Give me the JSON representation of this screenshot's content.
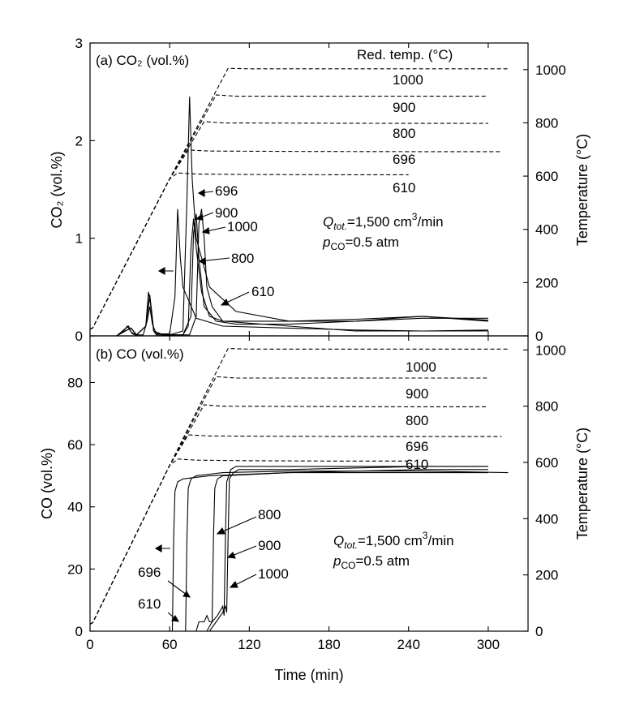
{
  "chart_data": [
    {
      "type": "line",
      "panel_label": "(a) CO₂ (vol.%)",
      "ylabel_left": "CO₂ (vol.%)",
      "ylabel_right": "Temperature (°C)",
      "xlim": [
        0,
        330
      ],
      "ylim_left": [
        0,
        3
      ],
      "ylim_right": [
        0,
        1100
      ],
      "xticks": [
        0,
        60,
        120,
        180,
        240,
        300
      ],
      "yticks_left": [
        "0",
        "1",
        "2",
        "3"
      ],
      "yticks_right": [
        "0",
        "200",
        "400",
        "600",
        "800",
        "1000"
      ],
      "legend_title": "Red. temp. (°C)",
      "temp_labels": [
        "1000",
        "900",
        "800",
        "696",
        "610"
      ],
      "conditions": {
        "q_label": "Q",
        "q_sub": "tot.",
        "q_value": "=1,500 cm",
        "q_exp": "3",
        "q_unit": "/min",
        "p_label": "p",
        "p_sub": "CO",
        "p_value": "=0.5 atm"
      },
      "peak_labels": [
        "696",
        "900",
        "1000",
        "800",
        "610"
      ],
      "temperature_series": [
        {
          "setpoint": 610,
          "x": [
            0,
            2,
            30,
            60,
            66,
            80,
            120,
            180,
            240
          ],
          "y": [
            25,
            30,
            300,
            590,
            612,
            608,
            606,
            605,
            605
          ]
        },
        {
          "setpoint": 696,
          "x": [
            0,
            2,
            30,
            60,
            74,
            90,
            150,
            240,
            310
          ],
          "y": [
            25,
            30,
            300,
            590,
            698,
            694,
            693,
            692,
            692
          ]
        },
        {
          "setpoint": 800,
          "x": [
            0,
            2,
            30,
            60,
            86,
            100,
            160,
            240,
            300
          ],
          "y": [
            25,
            30,
            300,
            590,
            805,
            800,
            799,
            798,
            798
          ]
        },
        {
          "setpoint": 900,
          "x": [
            0,
            2,
            30,
            60,
            95,
            110,
            170,
            240,
            300
          ],
          "y": [
            25,
            30,
            300,
            590,
            905,
            900,
            900,
            900,
            900
          ]
        },
        {
          "setpoint": 1000,
          "x": [
            0,
            2,
            30,
            60,
            104,
            120,
            180,
            250,
            315
          ],
          "y": [
            25,
            30,
            300,
            590,
            1005,
            1003,
            1003,
            1003,
            1003
          ]
        }
      ],
      "series": [
        {
          "label": "610",
          "x": [
            0,
            20,
            26,
            28,
            30,
            32,
            34,
            40,
            43,
            45,
            47,
            50,
            60,
            64,
            66,
            68,
            70,
            80,
            100,
            150,
            200,
            250,
            300
          ],
          "y": [
            0,
            0,
            0.06,
            0.1,
            0.06,
            0.02,
            0.01,
            0.01,
            0.15,
            0.3,
            0.12,
            0.02,
            0.02,
            0.4,
            1.3,
            0.8,
            0.5,
            0.18,
            0.1,
            0.08,
            0.06,
            0.05,
            0.05
          ]
        },
        {
          "label": "696",
          "x": [
            0,
            20,
            27,
            29,
            31,
            35,
            42,
            44,
            46,
            48,
            50,
            60,
            70,
            73,
            75,
            77,
            80,
            90,
            110,
            150,
            200,
            250,
            300
          ],
          "y": [
            0,
            0,
            0.08,
            0.1,
            0.04,
            0.01,
            0.1,
            0.45,
            0.3,
            0.05,
            0.01,
            0.01,
            0.05,
            1.4,
            2.45,
            1.6,
            1.0,
            0.5,
            0.25,
            0.15,
            0.15,
            0.18,
            0.18
          ]
        },
        {
          "label": "800",
          "x": [
            0,
            20,
            28,
            31,
            35,
            42,
            45,
            48,
            55,
            70,
            76,
            78,
            80,
            82,
            86,
            95,
            110,
            150,
            200,
            250,
            300
          ],
          "y": [
            0,
            0,
            0.06,
            0.08,
            0.01,
            0.1,
            0.42,
            0.05,
            0.01,
            0.01,
            0.2,
            1.05,
            1.25,
            0.8,
            0.3,
            0.15,
            0.12,
            0.12,
            0.15,
            0.2,
            0.15
          ]
        },
        {
          "label": "900",
          "x": [
            0,
            20,
            28,
            31,
            35,
            42,
            45,
            48,
            55,
            70,
            74,
            76,
            78,
            80,
            84,
            90,
            100,
            150,
            200,
            250,
            300
          ],
          "y": [
            0,
            0,
            0.06,
            0.08,
            0.01,
            0.1,
            0.4,
            0.05,
            0.01,
            0.01,
            0.1,
            0.9,
            1.2,
            0.9,
            0.45,
            0.2,
            0.15,
            0.15,
            0.17,
            0.2,
            0.16
          ]
        },
        {
          "label": "1000",
          "x": [
            0,
            20,
            28,
            31,
            35,
            42,
            45,
            48,
            55,
            75,
            80,
            82,
            84,
            86,
            88,
            92,
            100,
            150,
            200,
            250,
            300
          ],
          "y": [
            0,
            0,
            0.06,
            0.08,
            0.01,
            0.1,
            0.42,
            0.05,
            0.01,
            0.01,
            0.2,
            1.15,
            1.3,
            1.0,
            0.5,
            0.3,
            0.15,
            0.1,
            0.05,
            0.05,
            0.06
          ]
        }
      ]
    },
    {
      "type": "line",
      "panel_label": "(b) CO (vol.%)",
      "xlabel": "Time (min)",
      "ylabel_left": "CO (vol.%)",
      "ylabel_right": "Temperature (°C)",
      "xlim": [
        0,
        330
      ],
      "ylim_left": [
        0,
        95
      ],
      "ylim_right": [
        0,
        1050
      ],
      "xticks": [
        0,
        60,
        120,
        180,
        240,
        300
      ],
      "yticks_left": [
        "0",
        "20",
        "40",
        "60",
        "80"
      ],
      "yticks_right": [
        "0",
        "200",
        "400",
        "600",
        "800",
        "1000"
      ],
      "temp_labels": [
        "1000",
        "900",
        "800",
        "696",
        "610"
      ],
      "conditions": {
        "q_label": "Q",
        "q_sub": "tot.",
        "q_value": "=1,500 cm",
        "q_exp": "3",
        "q_unit": "/min",
        "p_label": "p",
        "p_sub": "CO",
        "p_value": "=0.5 atm"
      },
      "curve_labels": [
        "800",
        "900",
        "1000",
        "696",
        "610"
      ],
      "temperature_series": [
        {
          "setpoint": 610,
          "x": [
            0,
            2,
            30,
            60,
            66,
            80,
            120,
            180,
            240
          ],
          "y": [
            25,
            30,
            300,
            590,
            612,
            608,
            606,
            605,
            605
          ]
        },
        {
          "setpoint": 696,
          "x": [
            0,
            2,
            30,
            60,
            74,
            90,
            150,
            240,
            310
          ],
          "y": [
            25,
            30,
            300,
            590,
            698,
            694,
            693,
            692,
            692
          ]
        },
        {
          "setpoint": 800,
          "x": [
            0,
            2,
            30,
            60,
            86,
            100,
            160,
            240,
            300
          ],
          "y": [
            25,
            30,
            300,
            590,
            805,
            800,
            799,
            798,
            798
          ]
        },
        {
          "setpoint": 900,
          "x": [
            0,
            2,
            30,
            60,
            95,
            110,
            170,
            240,
            300
          ],
          "y": [
            25,
            30,
            300,
            590,
            905,
            900,
            900,
            900,
            900
          ]
        },
        {
          "setpoint": 1000,
          "x": [
            0,
            2,
            30,
            60,
            104,
            120,
            180,
            250,
            315
          ],
          "y": [
            25,
            30,
            300,
            590,
            1005,
            1003,
            1003,
            1003,
            1003
          ]
        }
      ],
      "series": [
        {
          "label": "610",
          "x": [
            0,
            62,
            63,
            64,
            66,
            70,
            90,
            150,
            250,
            300
          ],
          "y": [
            0,
            0,
            30,
            45,
            48,
            49,
            50,
            51,
            51,
            51
          ]
        },
        {
          "label": "696",
          "x": [
            0,
            72,
            73,
            74,
            76,
            80,
            100,
            150,
            250,
            315
          ],
          "y": [
            0,
            0,
            30,
            46,
            49,
            50,
            51,
            51.5,
            51.5,
            51
          ]
        },
        {
          "label": "800",
          "x": [
            0,
            80,
            82,
            86,
            88,
            90,
            92,
            93,
            94,
            96,
            100,
            150,
            250,
            300
          ],
          "y": [
            0,
            0,
            3,
            3,
            5,
            3,
            3,
            30,
            46,
            49,
            50,
            51,
            52,
            52
          ]
        },
        {
          "label": "900",
          "x": [
            0,
            88,
            92,
            96,
            100,
            101,
            102,
            103,
            106,
            110,
            150,
            250,
            300
          ],
          "y": [
            0,
            0,
            3,
            5,
            8,
            5,
            30,
            48,
            52,
            53,
            53,
            53,
            53
          ]
        },
        {
          "label": "1000",
          "x": [
            0,
            90,
            95,
            100,
            102,
            103,
            104,
            105,
            108,
            112,
            150,
            250,
            300
          ],
          "y": [
            0,
            0,
            3,
            6,
            8,
            6,
            30,
            49,
            51,
            52,
            52,
            53,
            53
          ]
        }
      ]
    }
  ]
}
